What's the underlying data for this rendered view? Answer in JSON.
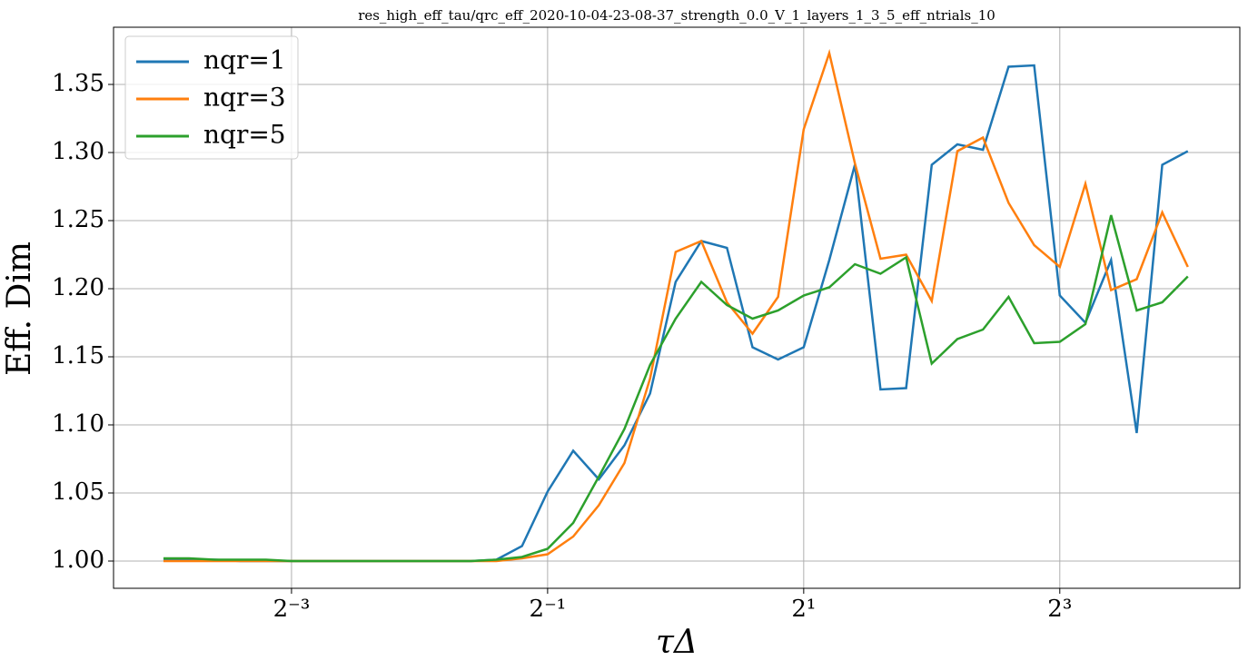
{
  "chart_data": {
    "type": "line",
    "title": "res_high_eff_tau/qrc_eff_2020-10-04-23-08-37_strength_0.0_V_1_layers_1_3_5_eff_ntrials_10",
    "xlabel": "τΔ",
    "ylabel": "Eff. Dim",
    "xscale": "log2",
    "grid": true,
    "legend": "upper left",
    "x": [
      0.0625,
      0.07179,
      0.08247,
      0.09473,
      0.1088,
      0.125,
      0.1436,
      0.1649,
      0.1895,
      0.2176,
      0.25,
      0.2872,
      0.3299,
      0.3789,
      0.4353,
      0.5,
      0.5743,
      0.6598,
      0.7579,
      0.8706,
      1,
      1.149,
      1.32,
      1.516,
      1.741,
      2,
      2.297,
      2.639,
      3.031,
      3.482,
      4,
      4.595,
      5.278,
      6.063,
      6.964,
      8,
      9.19,
      10.56,
      12.13,
      13.93,
      16
    ],
    "series": [
      {
        "name": "nqr=1",
        "color": "#1f77b4",
        "values": [
          1.001,
          1.001,
          1.001,
          1.0,
          1.0,
          1.0,
          1.0,
          1.0,
          1.0,
          1.0,
          1.0,
          1.0,
          1.0,
          1.001,
          1.011,
          1.051,
          1.081,
          1.06,
          1.085,
          1.123,
          1.205,
          1.235,
          1.23,
          1.157,
          1.148,
          1.157,
          1.221,
          1.291,
          1.126,
          1.127,
          1.291,
          1.306,
          1.302,
          1.363,
          1.364,
          1.195,
          1.175,
          1.221,
          1.094,
          1.291,
          1.301
        ]
      },
      {
        "name": "nqr=3",
        "color": "#ff7f0e",
        "values": [
          1.0,
          1.0,
          1.0,
          1.0,
          1.0,
          1.0,
          1.0,
          1.0,
          1.0,
          1.0,
          1.0,
          1.0,
          1.0,
          1.0,
          1.002,
          1.005,
          1.018,
          1.041,
          1.072,
          1.134,
          1.227,
          1.235,
          1.19,
          1.167,
          1.194,
          1.317,
          1.373,
          1.292,
          1.222,
          1.225,
          1.191,
          1.301,
          1.311,
          1.263,
          1.232,
          1.216,
          1.277,
          1.199,
          1.207,
          1.256,
          1.216
        ]
      },
      {
        "name": "nqr=5",
        "color": "#2ca02c",
        "values": [
          1.002,
          1.002,
          1.001,
          1.001,
          1.001,
          1.0,
          1.0,
          1.0,
          1.0,
          1.0,
          1.0,
          1.0,
          1.0,
          1.001,
          1.003,
          1.009,
          1.028,
          1.062,
          1.097,
          1.144,
          1.178,
          1.205,
          1.188,
          1.178,
          1.184,
          1.195,
          1.201,
          1.218,
          1.211,
          1.223,
          1.145,
          1.163,
          1.17,
          1.194,
          1.16,
          1.161,
          1.174,
          1.254,
          1.184,
          1.19,
          1.209
        ]
      }
    ],
    "xlim": [
      0.0477,
      21.2
    ],
    "xticks": [
      {
        "value": 0.125,
        "label": "2⁻³"
      },
      {
        "value": 0.5,
        "label": "2⁻¹"
      },
      {
        "value": 2,
        "label": "2¹"
      },
      {
        "value": 8,
        "label": "2³"
      }
    ],
    "ylim": [
      0.98,
      1.392
    ],
    "yticks": [
      {
        "value": 1.0,
        "label": "1.00"
      },
      1.05,
      {
        "value": 1.1,
        "label": "1.10"
      },
      1.15,
      {
        "value": 1.2,
        "label": "1.20"
      },
      1.25,
      {
        "value": 1.3,
        "label": "1.30"
      },
      1.35
    ]
  }
}
